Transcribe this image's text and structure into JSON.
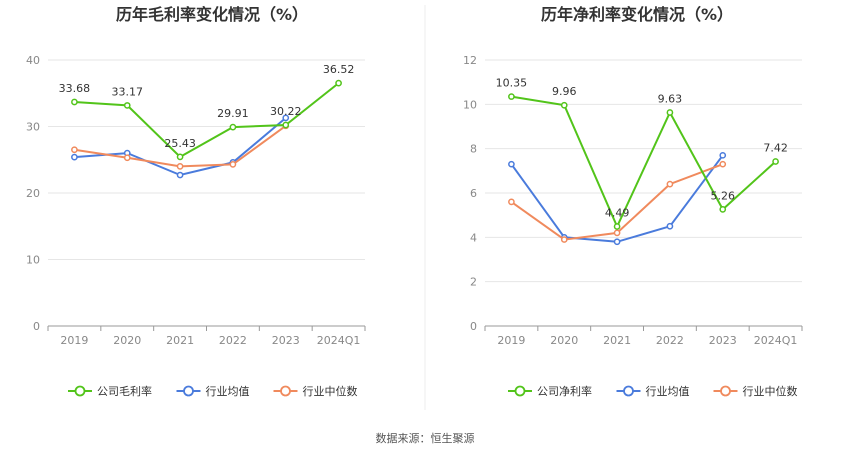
{
  "chart_data": [
    {
      "type": "line",
      "title": "历年毛利率变化情况（%）",
      "categories": [
        "2019",
        "2020",
        "2021",
        "2022",
        "2023",
        "2024Q1"
      ],
      "ylim": [
        0,
        40
      ],
      "yticks": [
        0,
        10,
        20,
        30,
        40
      ],
      "grid": true,
      "legend_placement": "bottom",
      "series": [
        {
          "name": "公司毛利率",
          "color": "#52c41a",
          "values": [
            33.68,
            33.17,
            25.43,
            29.91,
            30.22,
            36.52
          ],
          "labels": [
            "33.68",
            "33.17",
            "25.43",
            "29.91",
            "30.22",
            "36.52"
          ]
        },
        {
          "name": "行业均值",
          "color": "#4a7bdc",
          "values": [
            25.4,
            26.0,
            22.7,
            24.6,
            31.3,
            null
          ]
        },
        {
          "name": "行业中位数",
          "color": "#f08a5d",
          "values": [
            26.5,
            25.3,
            24.0,
            24.3,
            30.1,
            null
          ]
        }
      ]
    },
    {
      "type": "line",
      "title": "历年净利率变化情况（%）",
      "categories": [
        "2019",
        "2020",
        "2021",
        "2022",
        "2023",
        "2024Q1"
      ],
      "ylim": [
        0,
        12
      ],
      "yticks": [
        0,
        2,
        4,
        6,
        8,
        10,
        12
      ],
      "grid": true,
      "legend_placement": "bottom",
      "series": [
        {
          "name": "公司净利率",
          "color": "#52c41a",
          "values": [
            10.35,
            9.96,
            4.49,
            9.63,
            5.26,
            7.42
          ],
          "labels": [
            "10.35",
            "9.96",
            "4.49",
            "9.63",
            "5.26",
            "7.42"
          ]
        },
        {
          "name": "行业均值",
          "color": "#4a7bdc",
          "values": [
            7.3,
            4.0,
            3.8,
            4.5,
            7.7,
            null
          ]
        },
        {
          "name": "行业中位数",
          "color": "#f08a5d",
          "values": [
            5.6,
            3.9,
            4.2,
            6.4,
            7.3,
            null
          ]
        }
      ]
    }
  ],
  "source_text": "数据来源：恒生聚源"
}
